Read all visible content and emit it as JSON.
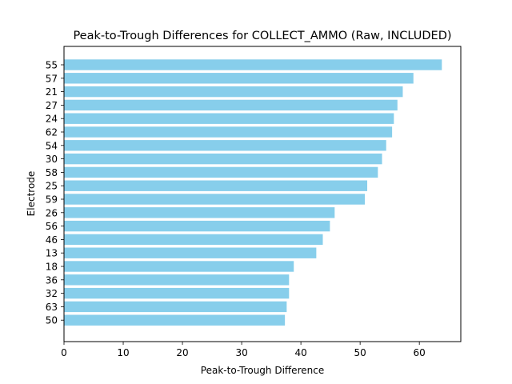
{
  "chart_data": {
    "type": "bar",
    "orientation": "horizontal",
    "title": "Peak-to-Trough Differences for COLLECT_AMMO (Raw, INCLUDED)",
    "xlabel": "Peak-to-Trough Difference",
    "ylabel": "Electrode",
    "categories": [
      "55",
      "57",
      "21",
      "27",
      "24",
      "62",
      "54",
      "30",
      "58",
      "25",
      "59",
      "26",
      "56",
      "46",
      "13",
      "18",
      "36",
      "32",
      "63",
      "50"
    ],
    "values": [
      63.8,
      59.0,
      57.2,
      56.3,
      55.7,
      55.4,
      54.4,
      53.7,
      53.0,
      51.2,
      50.8,
      45.7,
      44.9,
      43.7,
      42.6,
      38.8,
      38.0,
      38.0,
      37.6,
      37.3
    ],
    "xlim": [
      0,
      67
    ],
    "xticks": [
      0,
      10,
      20,
      30,
      40,
      50,
      60
    ],
    "bar_color": "#87ceeb",
    "grid": false,
    "legend": "none"
  }
}
